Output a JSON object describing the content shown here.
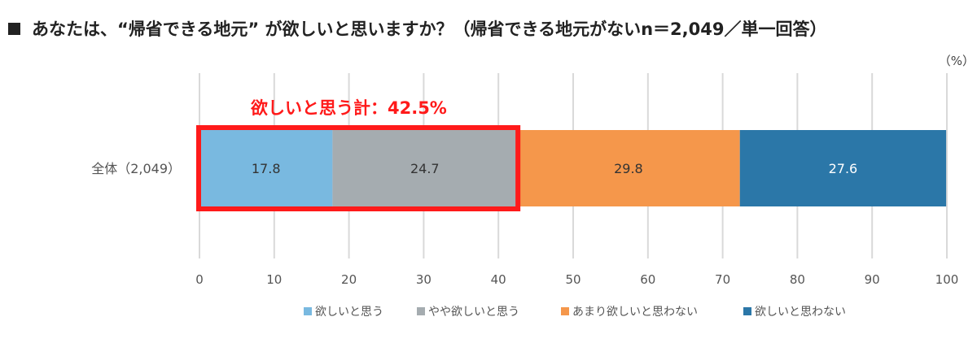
{
  "title": "あなたは、“帰省できる地元” が欲しいと思いますか？（帰省できる地元がないn＝2,049／単一回答）",
  "chart_data": {
    "type": "bar",
    "orientation": "horizontal",
    "stacked": true,
    "unit_label": "（%）",
    "categories": [
      "全体（2,049）"
    ],
    "series": [
      {
        "name": "欲しいと思う",
        "values": [
          17.8
        ],
        "color": "#79b9e0"
      },
      {
        "name": "やや欲しいと思う",
        "values": [
          24.7
        ],
        "color": "#a5acb0"
      },
      {
        "name": "あまり欲しいと思わない",
        "values": [
          29.8
        ],
        "color": "#f5974b"
      },
      {
        "name": "欲しいと思わない",
        "values": [
          27.6
        ],
        "color": "#2b77a8"
      }
    ],
    "xlim": [
      0,
      100
    ],
    "xticks": [
      "0",
      "10",
      "20",
      "30",
      "40",
      "50",
      "60",
      "70",
      "80",
      "90",
      "100"
    ],
    "grid": true,
    "legend_position": "bottom",
    "annotation": {
      "text": "欲しいと思う計：42.5%",
      "value": 42.5,
      "color": "#ff1a1a"
    }
  }
}
